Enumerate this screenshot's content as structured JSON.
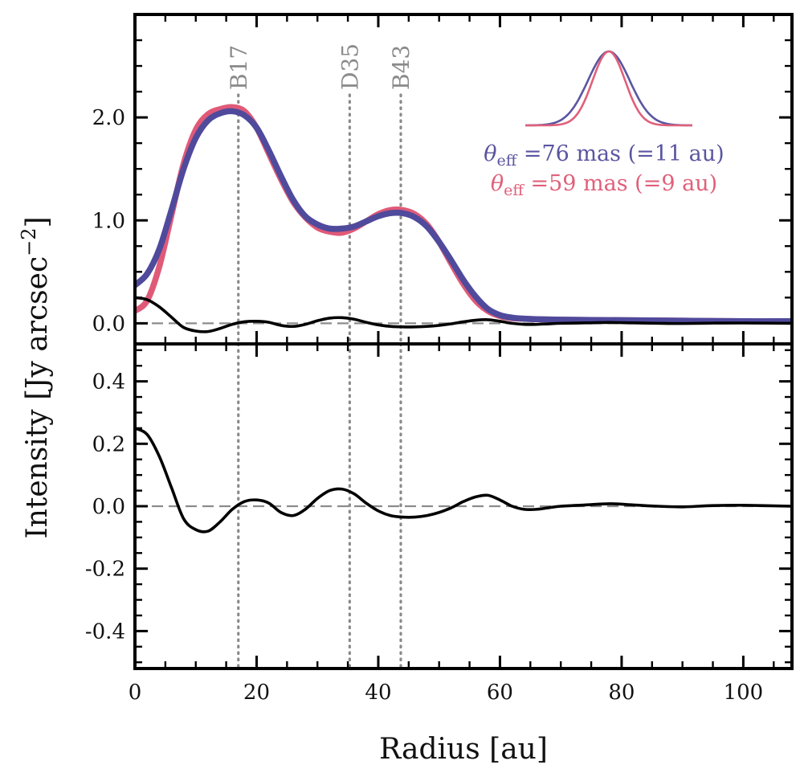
{
  "chart_data": {
    "type": "line",
    "xlabel": "Radius [au]",
    "ylabel": "Intensity [Jy arcsec",
    "ylabel_exponent": "−2",
    "ylabel_close": "]",
    "xlim": [
      0,
      108
    ],
    "x_ticks": [
      "0",
      "20",
      "40",
      "60",
      "80",
      "100"
    ],
    "x_tick_values": [
      0,
      20,
      40,
      60,
      80,
      100
    ],
    "panels": [
      {
        "name": "profile",
        "ylim": [
          -0.2,
          3.0
        ],
        "y_ticks": [
          "0.0",
          "1.0",
          "2.0"
        ],
        "y_tick_values": [
          0.0,
          1.0,
          2.0
        ],
        "reference_line": 0.0,
        "series": [
          {
            "name": "theta_eff = 59 mas profile",
            "color": "#e05a78",
            "x": [
              0,
              2,
              4,
              6,
              8,
              10,
              12,
              14,
              16,
              18,
              20,
              22,
              24,
              26,
              28,
              30,
              32,
              34,
              36,
              38,
              40,
              42,
              44,
              46,
              48,
              50,
              52,
              54,
              56,
              58,
              60,
              62,
              64,
              66,
              70,
              80,
              90,
              100,
              108
            ],
            "y": [
              0.12,
              0.22,
              0.55,
              1.05,
              1.55,
              1.88,
              2.03,
              2.08,
              2.1,
              2.06,
              1.9,
              1.65,
              1.4,
              1.18,
              1.03,
              0.93,
              0.89,
              0.88,
              0.92,
              0.99,
              1.06,
              1.1,
              1.1,
              1.06,
              0.96,
              0.79,
              0.58,
              0.38,
              0.22,
              0.12,
              0.07,
              0.05,
              0.045,
              0.04,
              0.035,
              0.03,
              0.025,
              0.02,
              0.02
            ]
          },
          {
            "name": "theta_eff = 76 mas profile",
            "color": "#4f4a9c",
            "x": [
              0,
              2,
              4,
              6,
              8,
              10,
              12,
              14,
              16,
              18,
              20,
              22,
              24,
              26,
              28,
              30,
              32,
              34,
              36,
              38,
              40,
              42,
              44,
              46,
              48,
              50,
              52,
              54,
              56,
              58,
              60,
              62,
              64,
              66,
              70,
              80,
              90,
              100,
              108
            ],
            "y": [
              0.37,
              0.48,
              0.72,
              1.1,
              1.5,
              1.8,
              1.97,
              2.04,
              2.06,
              2.02,
              1.9,
              1.68,
              1.43,
              1.2,
              1.04,
              0.96,
              0.92,
              0.92,
              0.94,
              0.99,
              1.04,
              1.07,
              1.07,
              1.03,
              0.94,
              0.79,
              0.61,
              0.42,
              0.26,
              0.14,
              0.08,
              0.055,
              0.045,
              0.04,
              0.035,
              0.03,
              0.025,
              0.02,
              0.02
            ]
          },
          {
            "name": "difference (same scale)",
            "color": "#000000",
            "x": [
              0,
              2,
              4,
              6,
              8,
              10,
              12,
              14,
              16,
              18,
              20,
              22,
              24,
              26,
              28,
              30,
              32,
              34,
              36,
              38,
              40,
              42,
              44,
              46,
              48,
              50,
              52,
              54,
              56,
              58,
              60,
              62,
              64,
              66,
              68,
              70,
              74,
              78,
              82,
              86,
              90,
              95,
              100,
              108
            ],
            "y": [
              0.25,
              0.23,
              0.16,
              0.06,
              -0.04,
              -0.075,
              -0.08,
              -0.05,
              -0.01,
              0.015,
              0.02,
              0.01,
              -0.02,
              -0.03,
              -0.01,
              0.025,
              0.05,
              0.055,
              0.04,
              0.01,
              -0.015,
              -0.03,
              -0.035,
              -0.035,
              -0.03,
              -0.02,
              -0.005,
              0.015,
              0.03,
              0.035,
              0.02,
              0.0,
              -0.01,
              -0.01,
              -0.005,
              0.0,
              0.004,
              0.008,
              0.004,
              0.0,
              -0.002,
              0.002,
              0.003,
              0.0
            ]
          }
        ]
      },
      {
        "name": "residual",
        "ylim": [
          -0.52,
          0.52
        ],
        "y_ticks": [
          "0.4",
          "0.2",
          "0.0",
          "-0.2",
          "-0.4"
        ],
        "y_tick_values": [
          0.4,
          0.2,
          0.0,
          -0.2,
          -0.4
        ],
        "reference_line": 0.0,
        "series": [
          {
            "name": "difference",
            "color": "#000000",
            "x": [
              0,
              2,
              4,
              6,
              8,
              10,
              12,
              14,
              16,
              18,
              20,
              22,
              24,
              26,
              28,
              30,
              32,
              34,
              36,
              38,
              40,
              42,
              44,
              46,
              48,
              50,
              52,
              54,
              56,
              58,
              60,
              62,
              64,
              66,
              68,
              70,
              74,
              78,
              82,
              86,
              90,
              95,
              100,
              108
            ],
            "y": [
              0.25,
              0.23,
              0.16,
              0.06,
              -0.04,
              -0.075,
              -0.08,
              -0.05,
              -0.01,
              0.015,
              0.02,
              0.01,
              -0.02,
              -0.03,
              -0.01,
              0.025,
              0.05,
              0.055,
              0.04,
              0.01,
              -0.015,
              -0.03,
              -0.035,
              -0.035,
              -0.03,
              -0.02,
              -0.005,
              0.015,
              0.03,
              0.035,
              0.02,
              0.0,
              -0.01,
              -0.01,
              -0.005,
              0.0,
              0.004,
              0.008,
              0.004,
              0.0,
              -0.002,
              0.002,
              0.003,
              0.0
            ]
          }
        ]
      }
    ],
    "annotations": [
      {
        "label": "B17",
        "x": 17
      },
      {
        "label": "D35",
        "x": 35.3
      },
      {
        "label": "B43",
        "x": 43.7
      }
    ],
    "legend": {
      "placement": "top-right",
      "entries": [
        {
          "symbol": "θ",
          "subscript": "eff",
          "text": " =76 mas (=11 au)",
          "color": "#5a55a0"
        },
        {
          "symbol": "θ",
          "subscript": "eff",
          "text": " =59 mas (=9 au)",
          "color": "#e0607a"
        }
      ]
    },
    "beam_inset": {
      "description_free": true,
      "series": [
        {
          "name": "beam 76 mas",
          "color": "#5a55a0",
          "sigma": 1.0
        },
        {
          "name": "beam 59 mas",
          "color": "#e0607a",
          "sigma": 0.78
        }
      ]
    }
  }
}
